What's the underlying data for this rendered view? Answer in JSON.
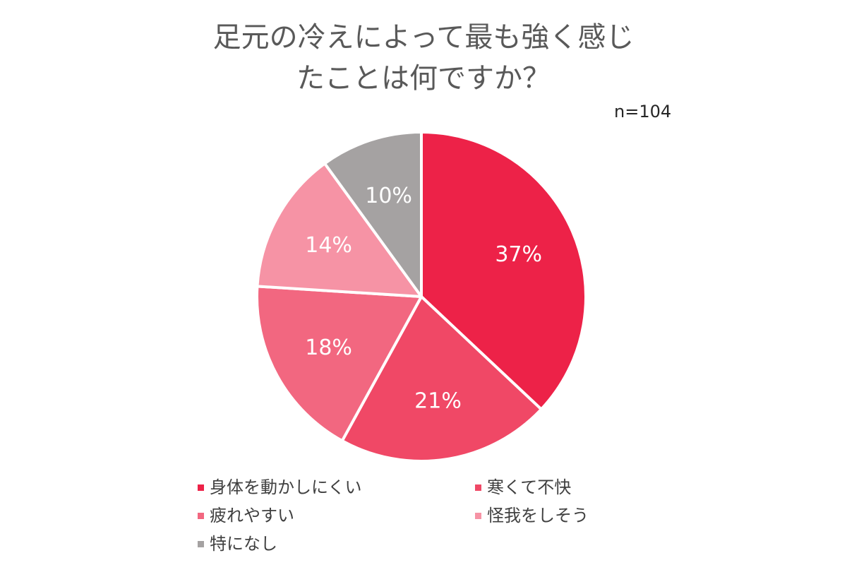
{
  "chart_data": {
    "type": "pie",
    "title_lines": [
      "足元の冷えによって最も強く感じ",
      "たことは何ですか？"
    ],
    "sample_size": "n=104",
    "slices": [
      {
        "label": "身体を動かしにくい",
        "value": 37,
        "display": "37%",
        "color": "#ED2248"
      },
      {
        "label": "寒くて不快",
        "value": 21,
        "display": "21%",
        "color": "#F04866"
      },
      {
        "label": "疲れやすい",
        "value": 18,
        "display": "18%",
        "color": "#F26780"
      },
      {
        "label": "怪我をしそう",
        "value": 14,
        "display": "14%",
        "color": "#F693A5"
      },
      {
        "label": "特になし",
        "value": 10,
        "display": "10%",
        "color": "#A5A2A2"
      }
    ],
    "legend_position": "bottom",
    "start_angle": "12 o'clock",
    "direction": "clockwise"
  }
}
